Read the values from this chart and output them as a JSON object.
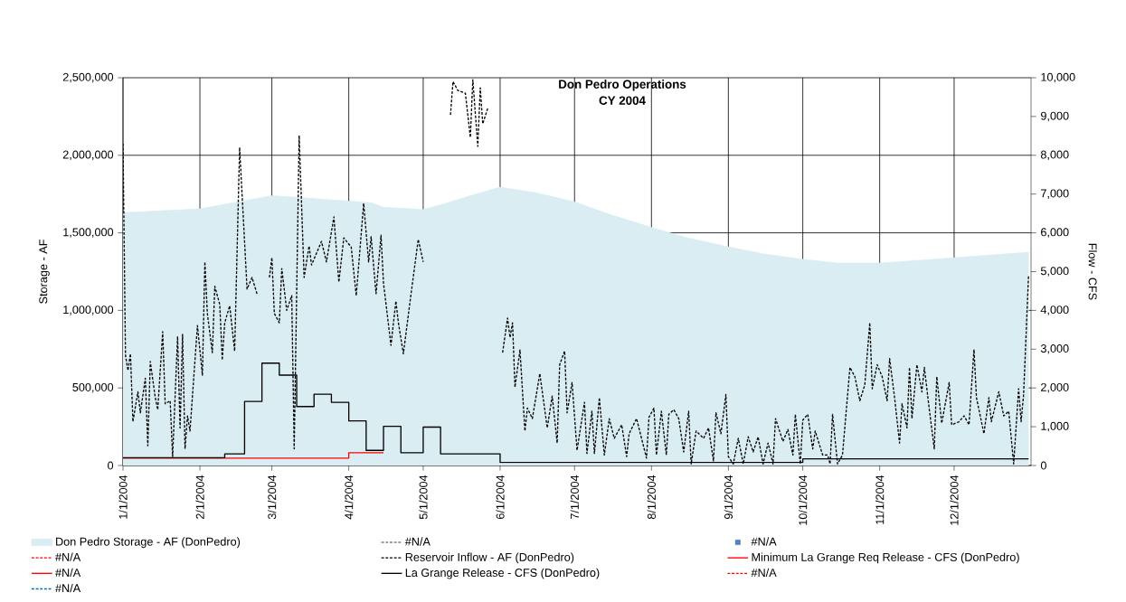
{
  "chart_data": {
    "type": "line",
    "title": "Don Pedro Operations",
    "subtitle": "CY 2004",
    "ylabel": "Storage - AF",
    "y2label": "Flow - CFS",
    "grid": true,
    "legend": "bottom",
    "xlim": [
      "2004-01-01",
      "2005-01-01"
    ],
    "xticks": [
      {
        "value": "2004-01-01",
        "label": "1/1/2004"
      },
      {
        "value": "2004-02-01",
        "label": "2/1/2004"
      },
      {
        "value": "2004-03-01",
        "label": "3/1/2004"
      },
      {
        "value": "2004-04-01",
        "label": "4/1/2004"
      },
      {
        "value": "2004-05-01",
        "label": "5/1/2004"
      },
      {
        "value": "2004-06-01",
        "label": "6/1/2004"
      },
      {
        "value": "2004-07-01",
        "label": "7/1/2004"
      },
      {
        "value": "2004-08-01",
        "label": "8/1/2004"
      },
      {
        "value": "2004-09-01",
        "label": "9/1/2004"
      },
      {
        "value": "2004-10-01",
        "label": "10/1/2004"
      },
      {
        "value": "2004-11-01",
        "label": "11/1/2004"
      },
      {
        "value": "2004-12-01",
        "label": "12/1/2004"
      }
    ],
    "ylim": [
      0,
      2500000
    ],
    "yticks": [
      {
        "value": 0,
        "label": "0"
      },
      {
        "value": 500000,
        "label": "500,000"
      },
      {
        "value": 1000000,
        "label": "1,000,000"
      },
      {
        "value": 1500000,
        "label": "1,500,000"
      },
      {
        "value": 2000000,
        "label": "2,000,000"
      },
      {
        "value": 2500000,
        "label": "2,500,000"
      }
    ],
    "y2lim": [
      0,
      10000
    ],
    "y2ticks": [
      {
        "value": 0,
        "label": "0"
      },
      {
        "value": 1000,
        "label": "1,000"
      },
      {
        "value": 2000,
        "label": "2,000"
      },
      {
        "value": 3000,
        "label": "3,000"
      },
      {
        "value": 4000,
        "label": "4,000"
      },
      {
        "value": 5000,
        "label": "5,000"
      },
      {
        "value": 6000,
        "label": "6,000"
      },
      {
        "value": 7000,
        "label": "7,000"
      },
      {
        "value": 8000,
        "label": "8,000"
      },
      {
        "value": 9000,
        "label": "9,000"
      },
      {
        "value": 10000,
        "label": "10,000"
      }
    ],
    "series": [
      {
        "name": "Don Pedro Storage - AF (DonPedro)",
        "type": "area",
        "color": "#daedf3",
        "x": [
          "2004-01-01",
          "2004-02-01",
          "2004-03-01",
          "2004-03-15",
          "2004-04-01",
          "2004-04-10",
          "2004-04-15",
          "2004-05-01",
          "2004-05-10",
          "2004-05-20",
          "2004-06-01",
          "2004-06-15",
          "2004-07-01",
          "2004-07-15",
          "2004-08-01",
          "2004-08-15",
          "2004-09-01",
          "2004-09-15",
          "2004-10-01",
          "2004-10-15",
          "2004-11-01",
          "2004-12-01",
          "2004-12-31"
        ],
        "values": [
          1630000,
          1655000,
          1740000,
          1725000,
          1705000,
          1695000,
          1665000,
          1650000,
          1690000,
          1740000,
          1795000,
          1760000,
          1700000,
          1620000,
          1535000,
          1470000,
          1410000,
          1365000,
          1330000,
          1305000,
          1305000,
          1340000,
          1375000
        ]
      },
      {
        "name": "#N/A",
        "type": "line",
        "color": "#808080",
        "line_style": "dashed",
        "axis": "y2"
      },
      {
        "name": "#N/A",
        "type": "scatter",
        "marker": "square",
        "color": "#4f81bd",
        "axis": "y2"
      },
      {
        "name": "#N/A",
        "type": "line",
        "color": "#ff0000",
        "line_style": "dashed",
        "axis": "y2"
      },
      {
        "name": "Reservoir Inflow - AF (DonPedro)",
        "type": "line",
        "color": "#000000",
        "line_style": "dashed",
        "axis": "y2",
        "x": [
          "2004-01-01",
          "2004-01-02",
          "2004-01-03",
          "2004-01-04",
          "2004-01-05",
          "2004-01-07",
          "2004-01-08",
          "2004-01-10",
          "2004-01-11",
          "2004-01-12",
          "2004-01-14",
          "2004-01-15",
          "2004-01-17",
          "2004-01-18",
          "2004-01-20",
          "2004-01-21",
          "2004-01-23",
          "2004-01-24",
          "2004-01-25",
          "2004-01-26",
          "2004-01-27",
          "2004-01-28",
          "2004-01-31",
          "2004-02-02",
          "2004-02-03",
          "2004-02-04",
          "2004-02-06",
          "2004-02-07",
          "2004-02-09",
          "2004-02-10",
          "2004-02-11",
          "2004-02-13",
          "2004-02-15",
          "2004-02-17",
          "2004-02-20",
          "2004-02-22",
          "2004-02-24",
          "2004-02-26",
          "2004-02-27",
          "2004-02-29",
          "2004-03-01",
          "2004-03-02",
          "2004-03-04",
          "2004-03-05",
          "2004-03-07",
          "2004-03-09",
          "2004-03-10",
          "2004-03-12",
          "2004-03-14",
          "2004-03-16",
          "2004-03-17",
          "2004-03-21",
          "2004-03-23",
          "2004-03-26",
          "2004-03-28",
          "2004-03-30",
          "2004-04-02",
          "2004-04-04",
          "2004-04-07",
          "2004-04-09",
          "2004-04-10",
          "2004-04-12",
          "2004-04-14",
          "2004-04-15",
          "2004-04-18",
          "2004-04-20",
          "2004-04-21",
          "2004-04-23",
          "2004-04-26",
          "2004-04-29",
          "2004-05-01",
          "2004-05-02",
          "2004-05-12",
          "2004-05-13",
          "2004-05-15",
          "2004-05-18",
          "2004-05-20",
          "2004-05-21",
          "2004-05-23",
          "2004-05-24",
          "2004-05-25",
          "2004-05-27",
          "2004-05-28",
          "2004-06-02",
          "2004-06-04",
          "2004-06-05",
          "2004-06-06",
          "2004-06-07",
          "2004-06-09",
          "2004-06-11",
          "2004-06-12",
          "2004-06-14",
          "2004-06-17",
          "2004-06-20",
          "2004-06-22",
          "2004-06-24",
          "2004-06-25",
          "2004-06-27",
          "2004-06-28",
          "2004-06-30",
          "2004-07-02",
          "2004-07-05",
          "2004-07-06",
          "2004-07-08",
          "2004-07-09",
          "2004-07-11",
          "2004-07-13",
          "2004-07-15",
          "2004-07-17",
          "2004-07-20",
          "2004-07-22",
          "2004-07-23",
          "2004-07-26",
          "2004-07-30",
          "2004-07-31",
          "2004-08-02",
          "2004-08-03",
          "2004-08-05",
          "2004-08-07",
          "2004-08-08",
          "2004-08-10",
          "2004-08-12",
          "2004-08-14",
          "2004-08-16",
          "2004-08-17",
          "2004-08-19",
          "2004-08-22",
          "2004-08-24",
          "2004-08-26",
          "2004-08-27",
          "2004-08-29",
          "2004-08-31",
          "2004-09-01",
          "2004-09-03",
          "2004-09-05",
          "2004-09-07",
          "2004-09-09",
          "2004-09-11",
          "2004-09-13",
          "2004-09-15",
          "2004-09-17",
          "2004-09-19",
          "2004-09-20",
          "2004-09-23",
          "2004-09-25",
          "2004-09-27",
          "2004-09-28",
          "2004-09-30",
          "2004-10-01",
          "2004-10-03",
          "2004-10-05",
          "2004-10-06",
          "2004-10-09",
          "2004-10-11",
          "2004-10-12",
          "2004-10-13",
          "2004-10-15",
          "2004-10-17",
          "2004-10-20",
          "2004-10-22",
          "2004-10-24",
          "2004-10-26",
          "2004-10-28",
          "2004-10-29",
          "2004-10-31",
          "2004-11-02",
          "2004-11-04",
          "2004-11-05",
          "2004-11-07",
          "2004-11-09",
          "2004-11-10",
          "2004-11-12",
          "2004-11-13",
          "2004-11-14",
          "2004-11-16",
          "2004-11-18",
          "2004-11-19",
          "2004-11-21",
          "2004-11-23",
          "2004-11-24",
          "2004-11-26",
          "2004-11-29",
          "2004-11-30",
          "2004-12-03",
          "2004-12-05",
          "2004-12-07",
          "2004-12-09",
          "2004-12-10",
          "2004-12-13",
          "2004-12-15",
          "2004-12-16",
          "2004-12-19",
          "2004-12-21",
          "2004-12-23",
          "2004-12-25",
          "2004-12-27",
          "2004-12-28",
          "2004-12-29",
          "2004-12-31"
        ],
        "values": [
          8300,
          2840,
          2450,
          2880,
          1130,
          1900,
          1360,
          2250,
          510,
          2680,
          1750,
          1440,
          3450,
          1590,
          1670,
          230,
          3330,
          970,
          3380,
          430,
          1280,
          890,
          3610,
          2330,
          5250,
          3920,
          2910,
          4620,
          4150,
          2720,
          3680,
          4120,
          2950,
          8200,
          4550,
          4850,
          4430,
          null,
          null,
          4850,
          5360,
          3920,
          3680,
          5080,
          4000,
          4380,
          430,
          8510,
          4850,
          5660,
          5170,
          5780,
          5250,
          6410,
          4730,
          5870,
          5630,
          4380,
          6760,
          5250,
          5900,
          4430,
          5940,
          4700,
          3100,
          4240,
          3680,
          2880,
          4380,
          5830,
          5250,
          null,
          9040,
          9900,
          9670,
          9600,
          8460,
          9950,
          8230,
          9740,
          8810,
          9210,
          null,
          2910,
          3800,
          3300,
          3680,
          2020,
          2980,
          890,
          1480,
          1210,
          2370,
          970,
          1790,
          580,
          2600,
          2950,
          1360,
          2140,
          390,
          1630,
          310,
          1400,
          310,
          1750,
          270,
          1210,
          700,
          1050,
          230,
          820,
          1210,
          190,
          1240,
          1480,
          270,
          1400,
          270,
          1320,
          1440,
          1210,
          350,
          1400,
          40,
          890,
          700,
          970,
          120,
          1360,
          820,
          1830,
          230,
          40,
          700,
          40,
          740,
          350,
          740,
          40,
          580,
          40,
          1210,
          620,
          930,
          270,
          1320,
          40,
          1170,
          1320,
          430,
          890,
          270,
          270,
          40,
          1320,
          40,
          270,
          2530,
          2290,
          1670,
          2080,
          3680,
          1980,
          2600,
          2290,
          1670,
          2760,
          1750,
          580,
          1590,
          970,
          2530,
          1210,
          2600,
          1900,
          2530,
          1440,
          430,
          2290,
          1090,
          2140,
          1050,
          1130,
          1280,
          1050,
          2990,
          1750,
          820,
          1750,
          1130,
          1900,
          1280,
          1400,
          40,
          1980,
          1130,
          1830,
          4900
        ]
      },
      {
        "name": "Minimum La Grange Req Release - CFS (DonPedro)",
        "type": "step",
        "color": "#ff0000",
        "line_style": "solid",
        "axis": "y2",
        "x": [
          "2004-01-01",
          "2004-04-01",
          "2004-04-15"
        ],
        "values": [
          190,
          330,
          330
        ]
      },
      {
        "name": "#N/A",
        "type": "line",
        "color": "#ff0000",
        "line_style": "solid",
        "axis": "y2"
      },
      {
        "name": "La Grange Release - CFS (DonPedro)",
        "type": "step",
        "color": "#000000",
        "line_style": "solid",
        "axis": "y2",
        "x": [
          "2004-01-01",
          "2004-02-11",
          "2004-02-19",
          "2004-02-26",
          "2004-03-04",
          "2004-03-11",
          "2004-03-18",
          "2004-03-25",
          "2004-04-01",
          "2004-04-08",
          "2004-04-15",
          "2004-04-22",
          "2004-05-01",
          "2004-05-08",
          "2004-06-01",
          "2004-10-01",
          "2004-12-31"
        ],
        "values": [
          200,
          300,
          1650,
          2640,
          2330,
          1520,
          1840,
          1630,
          1150,
          390,
          1010,
          330,
          990,
          300,
          80,
          170,
          170
        ]
      },
      {
        "name": "#N/A",
        "type": "line",
        "color": "#ff0000",
        "line_style": "dashed",
        "axis": "y2"
      },
      {
        "name": "#N/A",
        "type": "line",
        "color": "#0070c0",
        "line_style": "dashed",
        "axis": "y2"
      }
    ]
  }
}
